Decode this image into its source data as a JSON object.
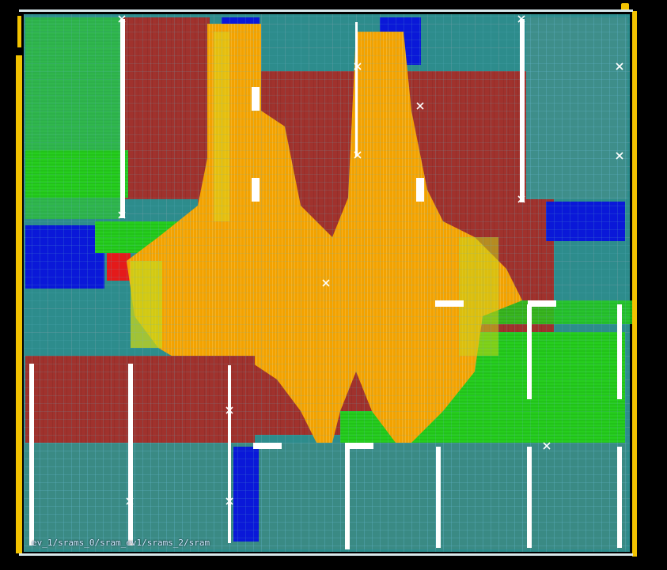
{
  "window": {
    "title": ""
  },
  "colors": {
    "background": "#000000",
    "metal_red": "#A0322D",
    "metal_orange": "#F3A200",
    "metal_green": "#22C21A",
    "metal_blue": "#0A18D8",
    "metal_teal": "#2D8C8C",
    "metal_yellow": "#E8D200",
    "pin_yellow": "#F2C200",
    "grid_cyan": "#5FB3C8",
    "grid_gray": "#8C8C8C",
    "sram_white": "#FFFFFF"
  },
  "icons": {
    "macro-pin": "cross-x",
    "io-pad": "yellow-bar"
  },
  "labels": {
    "instance_label": "ev_1/srams_0/sram_ev1/srams_2/sram"
  }
}
